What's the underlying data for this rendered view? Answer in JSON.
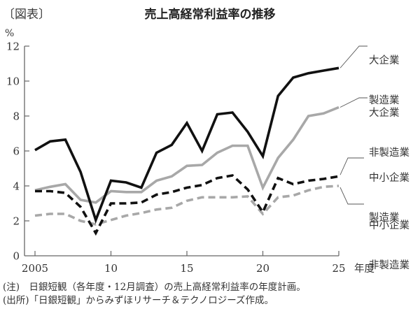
{
  "header": {
    "figure_label": "〔図表〕",
    "title": "売上高経常利益率の推移"
  },
  "chart_data": {
    "type": "line",
    "title": "売上高経常利益率の推移",
    "xlabel": "年度",
    "ylabel": "%",
    "ylim": [
      0,
      12
    ],
    "yticks": [
      0,
      2,
      4,
      6,
      8,
      10,
      12
    ],
    "xticks": [
      2005,
      2010,
      2015,
      2020,
      2025
    ],
    "xtick_labels": [
      "2005",
      "10",
      "15",
      "20",
      "25"
    ],
    "grid": false,
    "legend_position": "right, direct labels with leader lines",
    "x": [
      2005,
      2006,
      2007,
      2008,
      2009,
      2010,
      2011,
      2012,
      2013,
      2014,
      2015,
      2016,
      2017,
      2018,
      2019,
      2020,
      2021,
      2022,
      2023,
      2024,
      2025
    ],
    "series": [
      {
        "name": "大企業 製造業",
        "style": "solid",
        "color": "#111111",
        "values": [
          6.05,
          6.55,
          6.65,
          4.8,
          2.05,
          4.3,
          4.2,
          3.9,
          5.9,
          6.35,
          7.6,
          6.0,
          8.1,
          8.2,
          7.1,
          5.7,
          9.15,
          10.2,
          10.45,
          10.6,
          10.75
        ]
      },
      {
        "name": "大企業 非製造業",
        "style": "solid",
        "color": "#a8a8a8",
        "values": [
          3.75,
          3.95,
          4.1,
          3.2,
          3.05,
          3.7,
          3.65,
          3.65,
          4.3,
          4.55,
          5.15,
          5.2,
          5.9,
          6.3,
          6.3,
          3.9,
          5.6,
          6.65,
          8.0,
          8.15,
          8.5
        ]
      },
      {
        "name": "中小企業 製造業",
        "style": "dashed",
        "color": "#111111",
        "values": [
          3.7,
          3.7,
          3.6,
          2.8,
          1.3,
          3.0,
          3.0,
          3.05,
          3.5,
          3.65,
          3.9,
          4.05,
          4.45,
          4.6,
          3.8,
          2.5,
          4.45,
          4.1,
          4.3,
          4.4,
          4.55
        ]
      },
      {
        "name": "中小企業 非製造業",
        "style": "dashed",
        "color": "#a8a8a8",
        "values": [
          2.3,
          2.4,
          2.4,
          2.0,
          1.8,
          2.05,
          2.3,
          2.45,
          2.65,
          2.75,
          3.15,
          3.35,
          3.35,
          3.35,
          3.4,
          2.4,
          3.35,
          3.45,
          3.75,
          3.95,
          4.0
        ]
      }
    ],
    "annotations": []
  },
  "axis": {
    "y_unit": "%",
    "x_unit": "年度"
  },
  "legend": [
    {
      "line1": "大企業",
      "line2": "製造業"
    },
    {
      "line1": "大企業",
      "line2": "非製造業"
    },
    {
      "line1": "中小企業",
      "line2": "製造業"
    },
    {
      "line1": "中小企業",
      "line2": "非製造業"
    }
  ],
  "notes": {
    "note": "(注)　日銀短観（各年度・12月調査）の売上高経常利益率の年度計画。",
    "source": "(出所)「日銀短観」からみずほリサーチ＆テクノロジーズ作成。"
  }
}
